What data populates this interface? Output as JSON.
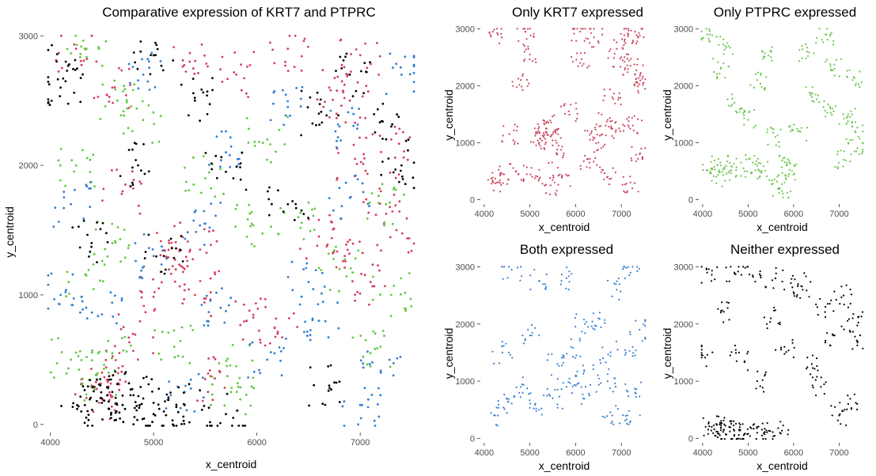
{
  "chart_data": [
    {
      "type": "scatter",
      "title": "Comparative expression of KRT7 and PTPRC",
      "xlabel": "x_centroid",
      "ylabel": "y_centroid",
      "xlim": [
        3950,
        7550
      ],
      "ylim": [
        -50,
        3020
      ],
      "xticks": [
        "4000",
        "5000",
        "6000",
        "7000"
      ],
      "yticks": [
        "0",
        "1000",
        "2000",
        "3000"
      ],
      "series": [
        {
          "color": "#d43a5e",
          "points": [
            [
              4500,
              200
            ],
            [
              4600,
              2600
            ],
            [
              5350,
              2800
            ],
            [
              4250,
              2900
            ],
            [
              5300,
              1200
            ],
            [
              5400,
              1000
            ],
            [
              5150,
              1400
            ],
            [
              5450,
              1350
            ],
            [
              4800,
              700
            ],
            [
              5900,
              800
            ],
            [
              6700,
              2600
            ],
            [
              6900,
              2500
            ],
            [
              7300,
              2200
            ],
            [
              7200,
              1800
            ],
            [
              6950,
              2050
            ],
            [
              7350,
              1500
            ],
            [
              6600,
              1450
            ],
            [
              6850,
              1300
            ],
            [
              4700,
              450
            ],
            [
              4400,
              300
            ],
            [
              5500,
              350
            ],
            [
              6200,
              700
            ],
            [
              7000,
              2850
            ],
            [
              5800,
              2700
            ],
            [
              6300,
              2900
            ],
            [
              7100,
              1100
            ],
            [
              4700,
              1800
            ],
            [
              5050,
              1050
            ]
          ]
        },
        {
          "color": "#5cc83c",
          "points": [
            [
              4200,
              500
            ],
            [
              4450,
              350
            ],
            [
              4600,
              550
            ],
            [
              4350,
              1150
            ],
            [
              5750,
              250
            ],
            [
              5800,
              450
            ],
            [
              4250,
              2000
            ],
            [
              4650,
              2500
            ],
            [
              5500,
              1900
            ],
            [
              6800,
              1200
            ],
            [
              7250,
              1700
            ],
            [
              7300,
              1000
            ],
            [
              4350,
              2900
            ],
            [
              5950,
              1550
            ],
            [
              7100,
              550
            ],
            [
              6400,
              1600
            ],
            [
              4600,
              1400
            ],
            [
              5200,
              600
            ],
            [
              6100,
              2200
            ],
            [
              4900,
              2350
            ]
          ]
        },
        {
          "color": "#2e7cd1",
          "points": [
            [
              4100,
              1000
            ],
            [
              4200,
              1700
            ],
            [
              5000,
              1300
            ],
            [
              5650,
              900
            ],
            [
              6100,
              500
            ],
            [
              6600,
              800
            ],
            [
              7200,
              400
            ],
            [
              6900,
              1750
            ],
            [
              5700,
              2100
            ],
            [
              4900,
              2700
            ],
            [
              6300,
              2450
            ],
            [
              7400,
              2700
            ],
            [
              7000,
              150
            ],
            [
              4500,
              850
            ],
            [
              5300,
              250
            ],
            [
              6500,
              1100
            ],
            [
              5500,
              1550
            ],
            [
              6800,
              2300
            ]
          ]
        },
        {
          "color": "#000000",
          "points": [
            [
              4300,
              100
            ],
            [
              4500,
              200
            ],
            [
              4700,
              150
            ],
            [
              4900,
              200
            ],
            [
              5100,
              100
            ],
            [
              5300,
              150
            ],
            [
              5700,
              80
            ],
            [
              4450,
              180
            ],
            [
              4600,
              250
            ],
            [
              5000,
              80
            ],
            [
              4100,
              2600
            ],
            [
              4150,
              2800
            ],
            [
              5000,
              2850
            ],
            [
              6600,
              2400
            ],
            [
              6300,
              1700
            ],
            [
              7300,
              2300
            ],
            [
              5400,
              2500
            ],
            [
              5100,
              1300
            ],
            [
              4400,
              1400
            ],
            [
              5700,
              1950
            ],
            [
              6900,
              2700
            ],
            [
              7400,
              2000
            ],
            [
              6700,
              300
            ],
            [
              4850,
              2000
            ]
          ]
        }
      ]
    },
    {
      "type": "scatter",
      "title": "Only KRT7 expressed",
      "xlabel": "x_centroid",
      "ylabel": "y_centroid",
      "xlim": [
        3950,
        7550
      ],
      "ylim": [
        -50,
        3020
      ],
      "xticks": [
        "4000",
        "5000",
        "6000",
        "7000"
      ],
      "yticks": [
        "0",
        "1000",
        "2000",
        "3000"
      ],
      "series": [
        {
          "color": "#c9465e",
          "points": [
            [
              5350,
              1250
            ],
            [
              5300,
              1100
            ],
            [
              5500,
              1150
            ],
            [
              5200,
              1000
            ],
            [
              5400,
              1350
            ],
            [
              6900,
              2650
            ],
            [
              7000,
              2500
            ],
            [
              7300,
              2200
            ],
            [
              7200,
              2350
            ],
            [
              7350,
              2050
            ],
            [
              7150,
              2900
            ],
            [
              7300,
              2950
            ],
            [
              5000,
              2550
            ],
            [
              4300,
              2900
            ],
            [
              4900,
              2950
            ],
            [
              6100,
              2950
            ],
            [
              6400,
              2850
            ],
            [
              6950,
              1250
            ],
            [
              6700,
              1400
            ],
            [
              6500,
              1000
            ],
            [
              6350,
              1200
            ],
            [
              7250,
              1300
            ],
            [
              4350,
              450
            ],
            [
              4700,
              500
            ],
            [
              5050,
              400
            ],
            [
              5450,
              250
            ],
            [
              5700,
              400
            ],
            [
              6300,
              650
            ],
            [
              6700,
              400
            ],
            [
              7200,
              300
            ],
            [
              4550,
              1150
            ],
            [
              5850,
              1550
            ],
            [
              6100,
              2400
            ],
            [
              4800,
              2100
            ],
            [
              5600,
              800
            ],
            [
              6800,
              1800
            ],
            [
              7400,
              800
            ],
            [
              4200,
              300
            ]
          ]
        }
      ]
    },
    {
      "type": "scatter",
      "title": "Only PTPRC expressed",
      "xlabel": "x_centroid",
      "ylabel": "y_centroid",
      "xlim": [
        3950,
        7550
      ],
      "ylim": [
        -50,
        3020
      ],
      "xticks": [
        "4000",
        "5000",
        "6000",
        "7000"
      ],
      "yticks": [
        "0",
        "1000",
        "2000",
        "3000"
      ],
      "series": [
        {
          "color": "#6cc54a",
          "points": [
            [
              4200,
              550
            ],
            [
              4400,
              600
            ],
            [
              4600,
              500
            ],
            [
              4300,
              400
            ],
            [
              4900,
              550
            ],
            [
              5100,
              650
            ],
            [
              5300,
              500
            ],
            [
              5800,
              300
            ],
            [
              5900,
              450
            ],
            [
              5700,
              200
            ],
            [
              5850,
              650
            ],
            [
              4100,
              2900
            ],
            [
              4500,
              2700
            ],
            [
              5200,
              2100
            ],
            [
              6300,
              2600
            ],
            [
              6700,
              2900
            ],
            [
              7300,
              2100
            ],
            [
              7200,
              1500
            ],
            [
              6850,
              1600
            ],
            [
              7400,
              900
            ],
            [
              7350,
              1200
            ],
            [
              6400,
              1800
            ],
            [
              5000,
              1400
            ],
            [
              5600,
              1100
            ],
            [
              4700,
              1700
            ],
            [
              6100,
              1200
            ],
            [
              4400,
              2300
            ],
            [
              5500,
              2600
            ],
            [
              6900,
              2300
            ],
            [
              7100,
              700
            ]
          ]
        }
      ]
    },
    {
      "type": "scatter",
      "title": "Both expressed",
      "xlabel": "x_centroid",
      "ylabel": "y_centroid",
      "xlim": [
        3950,
        7550
      ],
      "ylim": [
        -50,
        3020
      ],
      "xticks": [
        "4000",
        "5000",
        "6000",
        "7000"
      ],
      "yticks": [
        "0",
        "1000",
        "2000",
        "3000"
      ],
      "series": [
        {
          "color": "#3a7fd0",
          "points": [
            [
              5600,
              1300
            ],
            [
              5800,
              900
            ],
            [
              6000,
              1100
            ],
            [
              5500,
              700
            ],
            [
              6300,
              750
            ],
            [
              6700,
              1000
            ],
            [
              7100,
              1500
            ],
            [
              7300,
              800
            ],
            [
              4500,
              700
            ],
            [
              4800,
              900
            ],
            [
              5200,
              500
            ],
            [
              4300,
              400
            ],
            [
              6500,
              2100
            ],
            [
              6900,
              2600
            ],
            [
              7200,
              2900
            ],
            [
              5800,
              2800
            ],
            [
              5200,
              2750
            ],
            [
              4600,
              2950
            ],
            [
              6200,
              2000
            ],
            [
              7400,
              1900
            ],
            [
              5000,
              1800
            ],
            [
              6800,
              400
            ],
            [
              7200,
              300
            ],
            [
              4400,
              1500
            ],
            [
              5900,
              1600
            ],
            [
              6600,
              1400
            ]
          ]
        }
      ]
    },
    {
      "type": "scatter",
      "title": "Neither expressed",
      "xlabel": "x_centroid",
      "ylabel": "y_centroid",
      "xlim": [
        3950,
        7550
      ],
      "ylim": [
        -50,
        3020
      ],
      "xticks": [
        "4000",
        "5000",
        "6000",
        "7000"
      ],
      "yticks": [
        "0",
        "1000",
        "2000",
        "3000"
      ],
      "series": [
        {
          "color": "#000000",
          "points": [
            [
              4200,
              200
            ],
            [
              4400,
              180
            ],
            [
              4600,
              120
            ],
            [
              4800,
              150
            ],
            [
              5000,
              80
            ],
            [
              5200,
              100
            ],
            [
              4300,
              250
            ],
            [
              4500,
              220
            ],
            [
              4700,
              60
            ],
            [
              5400,
              140
            ],
            [
              5700,
              100
            ],
            [
              4100,
              2900
            ],
            [
              4700,
              2900
            ],
            [
              5100,
              2850
            ],
            [
              5600,
              2800
            ],
            [
              6200,
              2600
            ],
            [
              6700,
              2300
            ],
            [
              7100,
              2500
            ],
            [
              7300,
              2100
            ],
            [
              6900,
              1800
            ],
            [
              5800,
              1600
            ],
            [
              6400,
              1300
            ],
            [
              7400,
              1700
            ],
            [
              4800,
              1500
            ],
            [
              5200,
              1000
            ],
            [
              6600,
              900
            ],
            [
              7200,
              600
            ],
            [
              4000,
              1450
            ],
            [
              4400,
              2200
            ],
            [
              5500,
              2100
            ],
            [
              6100,
              2700
            ],
            [
              7000,
              400
            ]
          ]
        }
      ]
    }
  ]
}
